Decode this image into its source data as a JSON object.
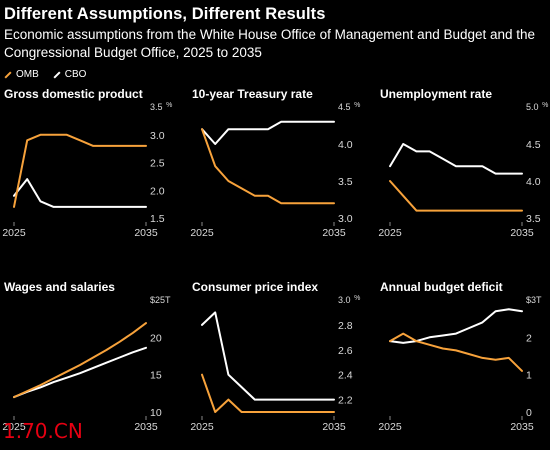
{
  "header": {
    "title": "Different Assumptions, Different Results",
    "subtitle": "Economic assumptions from the White House Office of Management and Budget and the Congressional Budget Office, 2025 to 2035"
  },
  "legend": [
    {
      "label": "OMB",
      "color": "#f7a23b"
    },
    {
      "label": "CBO",
      "color": "#ffffff"
    }
  ],
  "colors": {
    "omb": "#f7a23b",
    "cbo": "#ffffff",
    "axis_text": "#d9d9d9",
    "background": "#000000"
  },
  "watermark": "1.70.CN",
  "chart_data": [
    {
      "type": "line",
      "title": "Gross domestic product",
      "unit": "%",
      "x": [
        2025,
        2026,
        2027,
        2028,
        2029,
        2030,
        2031,
        2032,
        2033,
        2034,
        2035
      ],
      "xticks": [
        "2025",
        "2035"
      ],
      "ylim": [
        1.5,
        3.5
      ],
      "yticks": [
        "1.5",
        "2.0",
        "2.5",
        "3.0",
        "3.5"
      ],
      "series": [
        {
          "name": "OMB",
          "values": [
            1.7,
            2.9,
            3.0,
            3.0,
            3.0,
            2.9,
            2.8,
            2.8,
            2.8,
            2.8,
            2.8
          ]
        },
        {
          "name": "CBO",
          "values": [
            1.9,
            2.2,
            1.8,
            1.7,
            1.7,
            1.7,
            1.7,
            1.7,
            1.7,
            1.7,
            1.7
          ]
        }
      ]
    },
    {
      "type": "line",
      "title": "10-year Treasury rate",
      "unit": "%",
      "x": [
        2025,
        2026,
        2027,
        2028,
        2029,
        2030,
        2031,
        2032,
        2033,
        2034,
        2035
      ],
      "xticks": [
        "2025",
        "2035"
      ],
      "ylim": [
        3.0,
        4.5
      ],
      "yticks": [
        "3.0",
        "3.5",
        "4.0",
        "4.5"
      ],
      "series": [
        {
          "name": "OMB",
          "values": [
            4.2,
            3.7,
            3.5,
            3.4,
            3.3,
            3.3,
            3.2,
            3.2,
            3.2,
            3.2,
            3.2
          ]
        },
        {
          "name": "CBO",
          "values": [
            4.2,
            4.0,
            4.2,
            4.2,
            4.2,
            4.2,
            4.3,
            4.3,
            4.3,
            4.3,
            4.3
          ]
        }
      ]
    },
    {
      "type": "line",
      "title": "Unemployment rate",
      "unit": "%",
      "x": [
        2025,
        2026,
        2027,
        2028,
        2029,
        2030,
        2031,
        2032,
        2033,
        2034,
        2035
      ],
      "xticks": [
        "2025",
        "2035"
      ],
      "ylim": [
        3.5,
        5.0
      ],
      "yticks": [
        "3.5",
        "4.0",
        "4.5",
        "5.0"
      ],
      "series": [
        {
          "name": "OMB",
          "values": [
            4.0,
            3.8,
            3.6,
            3.6,
            3.6,
            3.6,
            3.6,
            3.6,
            3.6,
            3.6,
            3.6
          ]
        },
        {
          "name": "CBO",
          "values": [
            4.2,
            4.5,
            4.4,
            4.4,
            4.3,
            4.2,
            4.2,
            4.2,
            4.1,
            4.1,
            4.1
          ]
        }
      ]
    },
    {
      "type": "line",
      "title": "Wages and salaries",
      "unit": "T",
      "x": [
        2025,
        2026,
        2027,
        2028,
        2029,
        2030,
        2031,
        2032,
        2033,
        2034,
        2035
      ],
      "xticks": [
        "2025",
        "2035"
      ],
      "ylim": [
        10,
        25
      ],
      "yticks": [
        "10",
        "15",
        "20",
        "$25T"
      ],
      "series": [
        {
          "name": "OMB",
          "values": [
            12.0,
            12.8,
            13.6,
            14.5,
            15.4,
            16.3,
            17.3,
            18.3,
            19.4,
            20.6,
            21.9
          ]
        },
        {
          "name": "CBO",
          "values": [
            12.0,
            12.7,
            13.3,
            14.0,
            14.6,
            15.2,
            15.9,
            16.6,
            17.3,
            18.0,
            18.6
          ]
        }
      ]
    },
    {
      "type": "line",
      "title": "Consumer price index",
      "unit": "%",
      "x": [
        2025,
        2026,
        2027,
        2028,
        2029,
        2030,
        2031,
        2032,
        2033,
        2034,
        2035
      ],
      "xticks": [
        "2025",
        "2035"
      ],
      "ylim": [
        2.1,
        3.0
      ],
      "yticks": [
        "2.2",
        "2.4",
        "2.6",
        "2.8",
        "3.0"
      ],
      "series": [
        {
          "name": "OMB",
          "values": [
            2.4,
            2.1,
            2.2,
            2.1,
            2.1,
            2.1,
            2.1,
            2.1,
            2.1,
            2.1,
            2.1
          ]
        },
        {
          "name": "CBO",
          "values": [
            2.8,
            2.9,
            2.4,
            2.3,
            2.2,
            2.2,
            2.2,
            2.2,
            2.2,
            2.2,
            2.2
          ]
        }
      ]
    },
    {
      "type": "line",
      "title": "Annual budget deficit",
      "unit": "T",
      "x": [
        2025,
        2026,
        2027,
        2028,
        2029,
        2030,
        2031,
        2032,
        2033,
        2034,
        2035
      ],
      "xticks": [
        "2025",
        "2035"
      ],
      "ylim": [
        0,
        3
      ],
      "yticks": [
        "0",
        "1",
        "2",
        "$3T"
      ],
      "series": [
        {
          "name": "OMB",
          "values": [
            1.9,
            2.1,
            1.9,
            1.8,
            1.7,
            1.65,
            1.55,
            1.45,
            1.4,
            1.45,
            1.1
          ]
        },
        {
          "name": "CBO",
          "values": [
            1.9,
            1.85,
            1.9,
            2.0,
            2.05,
            2.1,
            2.25,
            2.4,
            2.7,
            2.75,
            2.7
          ]
        }
      ]
    }
  ]
}
